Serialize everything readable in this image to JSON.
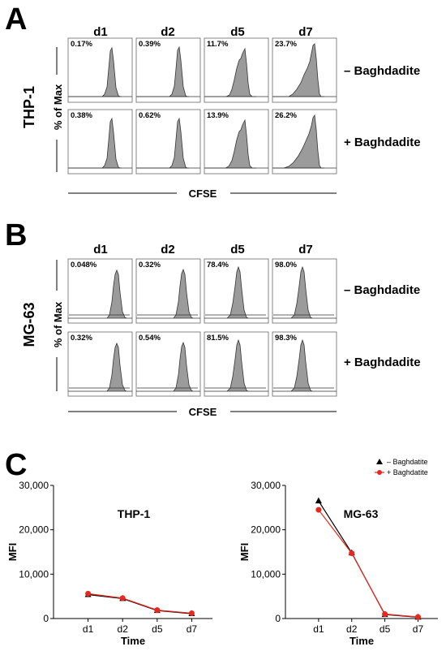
{
  "panels": {
    "A": {
      "letter": "A",
      "cell_line": "THP-1",
      "columns": [
        "d1",
        "d2",
        "d5",
        "d7"
      ],
      "rows": [
        {
          "label": "– Baghdadite",
          "percents": [
            "0.17%",
            "0.39%",
            "11.7%",
            "23.7%"
          ]
        },
        {
          "label": "+ Baghdadite",
          "percents": [
            "0.38%",
            "0.62%",
            "13.9%",
            "26.2%"
          ]
        }
      ],
      "ylabel": "% of Max",
      "xlabel": "CFSE"
    },
    "B": {
      "letter": "B",
      "cell_line": "MG-63",
      "columns": [
        "d1",
        "d2",
        "d5",
        "d7"
      ],
      "rows": [
        {
          "label": "– Baghdadite",
          "percents": [
            "0.048%",
            "0.32%",
            "78.4%",
            "98.0%"
          ]
        },
        {
          "label": "+ Baghdadite",
          "percents": [
            "0.32%",
            "0.54%",
            "81.5%",
            "98.3%"
          ]
        }
      ],
      "ylabel": "% of Max",
      "xlabel": "CFSE"
    },
    "C": {
      "letter": "C"
    }
  },
  "colors": {
    "minus": "#000000",
    "plus": "#e8281e",
    "histogram_fill": "#9b9b9b"
  },
  "chart_data": [
    {
      "type": "line",
      "title": "THP-1",
      "xlabel": "Time",
      "ylabel": "MFI",
      "categories": [
        "d1",
        "d2",
        "d5",
        "d7"
      ],
      "ylim": [
        0,
        30000
      ],
      "yticks": [
        "0",
        "10,000",
        "20,000",
        "30,000"
      ],
      "series": [
        {
          "name": "– Baghdatite",
          "marker": "triangle",
          "values": [
            5400,
            4500,
            1800,
            1100
          ]
        },
        {
          "name": "+ Baghdatite",
          "marker": "circle",
          "values": [
            5600,
            4600,
            1900,
            1200
          ]
        }
      ]
    },
    {
      "type": "line",
      "title": "MG-63",
      "xlabel": "Time",
      "ylabel": "MFI",
      "categories": [
        "d1",
        "d2",
        "d5",
        "d7"
      ],
      "ylim": [
        0,
        30000
      ],
      "yticks": [
        "0",
        "10,000",
        "20,000",
        "30,000"
      ],
      "legend": "top-right",
      "series": [
        {
          "name": "– Baghdatite",
          "marker": "triangle",
          "values": [
            26500,
            14800,
            900,
            300
          ]
        },
        {
          "name": "+ Baghdatite",
          "marker": "circle",
          "values": [
            24500,
            14700,
            1000,
            350
          ]
        }
      ]
    }
  ]
}
